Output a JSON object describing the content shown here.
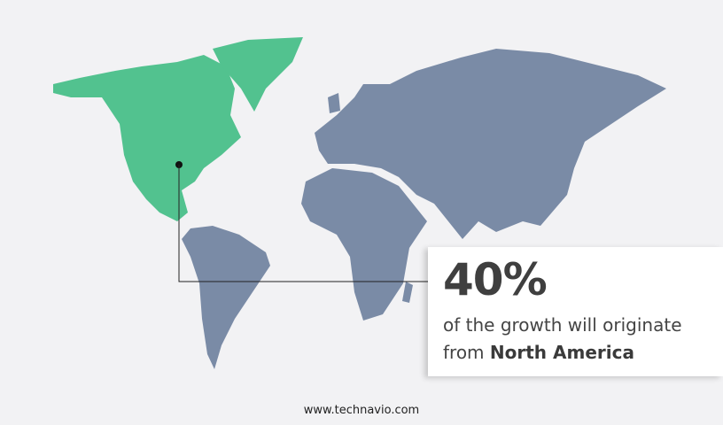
{
  "colors": {
    "highlight_region": "#52c28f",
    "other_regions": "#7a8ba6",
    "background": "#f2f2f4"
  },
  "highlight": {
    "region": "North America",
    "percent": "40%",
    "text_prefix": "of the growth will originate",
    "text_from": "from",
    "region_label": "North America"
  },
  "footer": {
    "url": "www.technavio.com"
  }
}
